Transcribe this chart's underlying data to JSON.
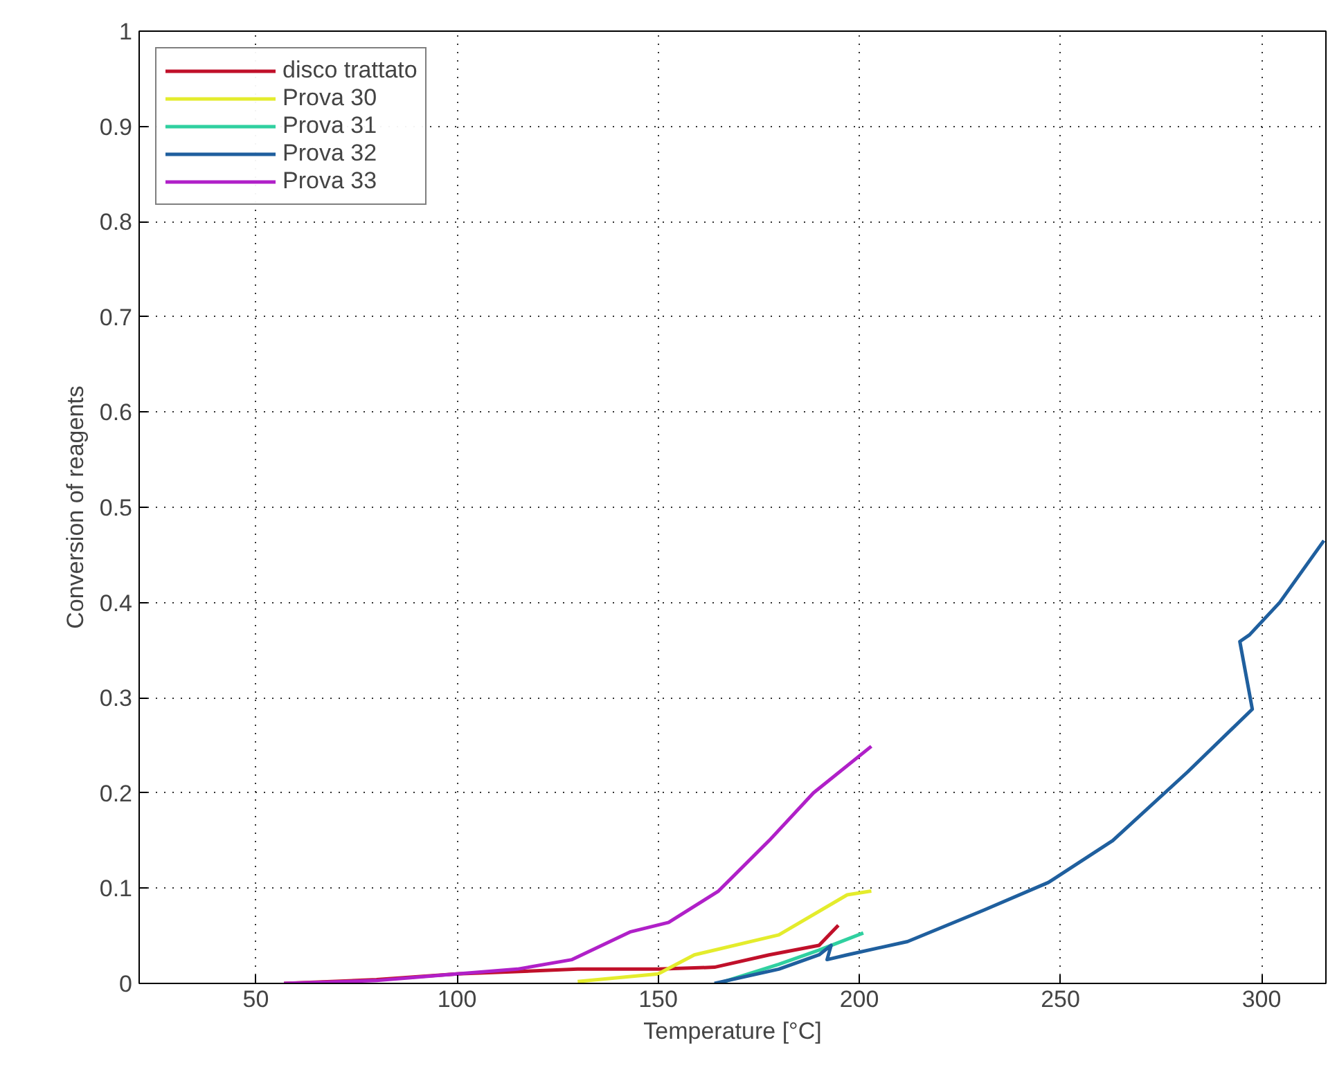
{
  "chart_data": {
    "type": "line",
    "xlabel": "Temperature [°C]",
    "ylabel": "Conversion of reagents",
    "xlim": [
      21,
      316
    ],
    "ylim": [
      0,
      1
    ],
    "xticks": [
      50,
      100,
      150,
      200,
      250,
      300
    ],
    "yticks": [
      0,
      0.1,
      0.2,
      0.3,
      0.4,
      0.5,
      0.6,
      0.7,
      0.8,
      0.9,
      1
    ],
    "grid": true,
    "legend": "top left",
    "line_style": "solid",
    "series": [
      {
        "name": "disco trattato",
        "color": "#c0102a",
        "x": [
          57,
          80,
          100,
          130,
          150,
          164,
          177.6,
          190,
          194.8
        ],
        "values": [
          0,
          0.004,
          0.01,
          0.015,
          0.015,
          0.017,
          0.03,
          0.04,
          0.061
        ]
      },
      {
        "name": "Prova 30",
        "color": "#e4ec2c",
        "x": [
          130,
          150,
          159,
          180,
          197,
          203
        ],
        "values": [
          0.002,
          0.01,
          0.03,
          0.051,
          0.093,
          0.097
        ]
      },
      {
        "name": "Prova 31",
        "color": "#30d0a0",
        "x": [
          165,
          180,
          190,
          201
        ],
        "values": [
          0,
          0.02,
          0.035,
          0.053
        ]
      },
      {
        "name": "Prova 32",
        "color": "#1f5f9e",
        "x": [
          164,
          180,
          190,
          193,
          192,
          197,
          212,
          231,
          247,
          263,
          281.6,
          297.7,
          294.6,
          297,
          304.5,
          315.5
        ],
        "values": [
          0,
          0.015,
          0.03,
          0.04,
          0.025,
          0.03,
          0.044,
          0.077,
          0.106,
          0.15,
          0.222,
          0.288,
          0.359,
          0.366,
          0.4,
          0.465
        ]
      },
      {
        "name": "Prova 33",
        "color": "#b020c8",
        "x": [
          57,
          80,
          100,
          115,
          128.6,
          143,
          152.6,
          165,
          177.6,
          188.6,
          203
        ],
        "values": [
          0,
          0.003,
          0.01,
          0.015,
          0.025,
          0.054,
          0.064,
          0.097,
          0.15,
          0.2,
          0.249
        ]
      }
    ]
  }
}
